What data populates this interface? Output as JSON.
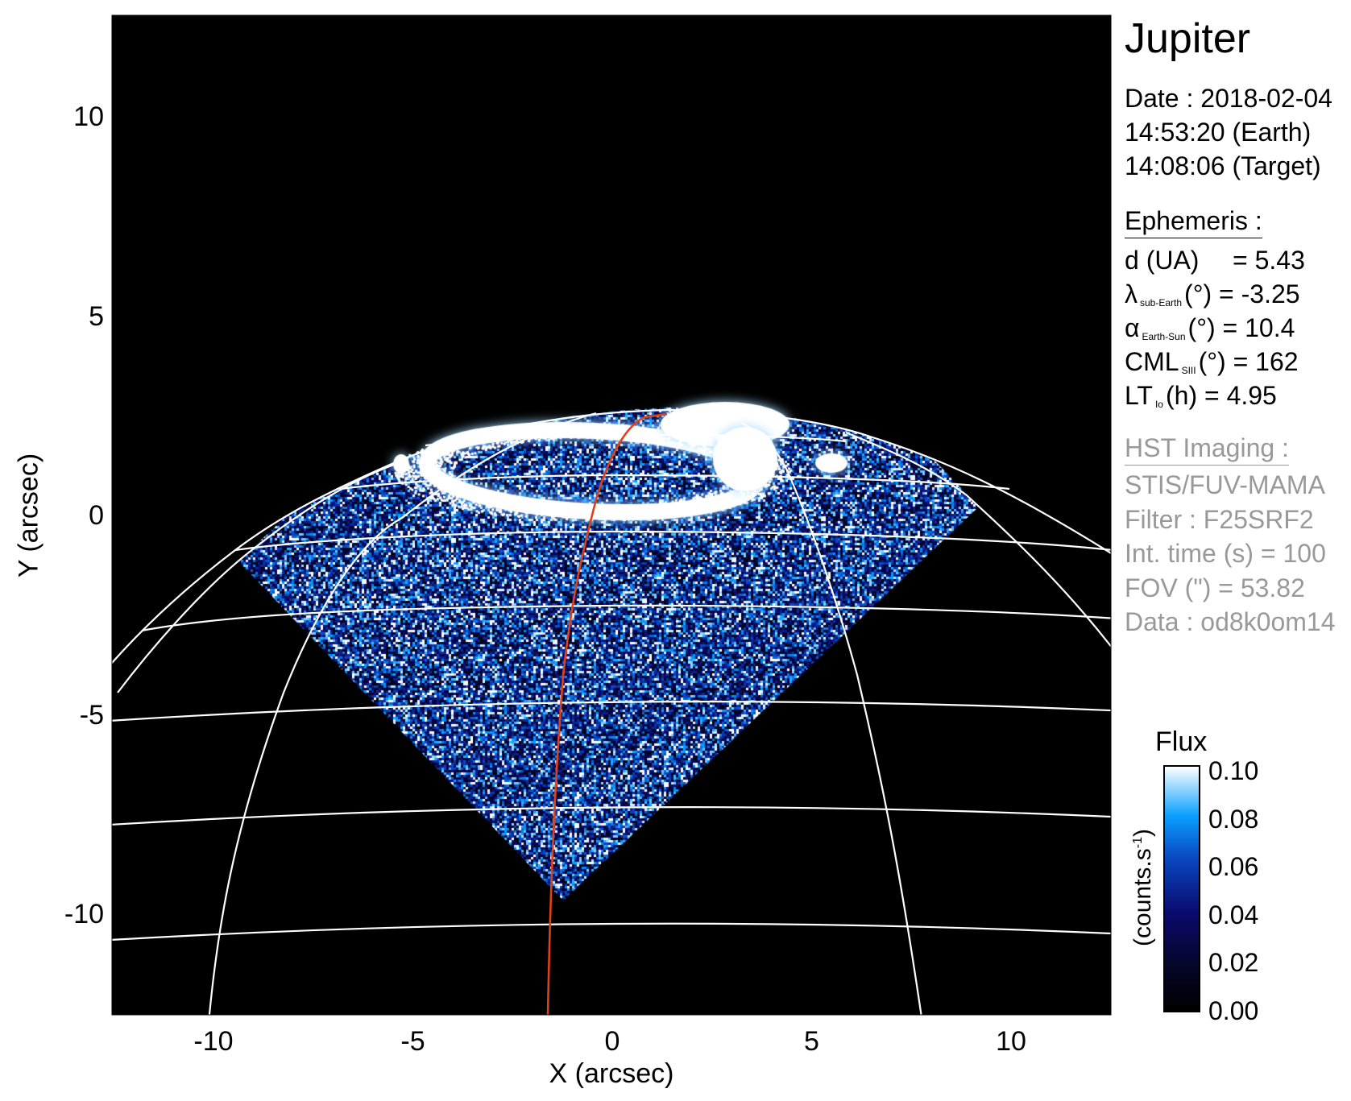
{
  "chart_data": {
    "type": "heatmap",
    "title": "Jupiter",
    "xlabel": "X (arcsec)",
    "ylabel": "Y (arcsec)",
    "xlim": [
      -12.5,
      12.5
    ],
    "ylim": [
      -12.5,
      12.5
    ],
    "xticks": [
      {
        "value": -10,
        "label": "-10"
      },
      {
        "value": -5,
        "label": "-5"
      },
      {
        "value": 0,
        "label": "0"
      },
      {
        "value": 5,
        "label": "5"
      },
      {
        "value": 10,
        "label": "10"
      }
    ],
    "yticks": [
      {
        "value": 10,
        "label": "10"
      },
      {
        "value": 5,
        "label": "5"
      },
      {
        "value": 0,
        "label": "0"
      },
      {
        "value": -5,
        "label": "-5"
      },
      {
        "value": -10,
        "label": "-10"
      }
    ],
    "grid": "planetographic latitude/longitude graticule overlay",
    "colorbar": {
      "title": "Flux",
      "unit_base": "(counts.s",
      "unit_exp": "-1",
      "unit_close": ")",
      "range": [
        0.0,
        0.1
      ],
      "ticks": [
        {
          "value": 0.1,
          "label": "0.10"
        },
        {
          "value": 0.08,
          "label": "0.08"
        },
        {
          "value": 0.06,
          "label": "0.06"
        },
        {
          "value": 0.04,
          "label": "0.04"
        },
        {
          "value": 0.02,
          "label": "0.02"
        },
        {
          "value": 0.0,
          "label": "0.00"
        }
      ],
      "colormap": [
        "#000000",
        "#0a0a6e",
        "#0a46c0",
        "#0aa0ff",
        "#ffffff"
      ]
    },
    "colors": {
      "grid": "#ffffff",
      "meridian": "#e0401a",
      "background": "#000000"
    }
  },
  "info": {
    "title": "Jupiter",
    "date": "Date : 2018-02-04",
    "time_earth": "14:53:20 (Earth)",
    "time_target": "14:08:06 (Target)",
    "ephemeris_header": "Ephemeris :",
    "ephemeris": [
      {
        "symbol": "d (UA)",
        "sub": "",
        "rest": "    = 5.43"
      },
      {
        "symbol": "λ",
        "sub": "sub-Earth",
        "rest": "(°) = -3.25"
      },
      {
        "symbol": "α",
        "sub": "Earth-Sun",
        "rest": "(°) = 10.4"
      },
      {
        "symbol": "CML",
        "sub": "SIII",
        "rest": "(°) = 162"
      },
      {
        "symbol": "LT",
        "sub": "Io",
        "rest": "(h) = 4.95"
      }
    ],
    "hst_header": "HST Imaging :",
    "hst": [
      "STIS/FUV-MAMA",
      "Filter : F25SRF2",
      "Int. time (s) = 100",
      "FOV (\") = 53.82",
      "Data : od8k0om14"
    ]
  }
}
